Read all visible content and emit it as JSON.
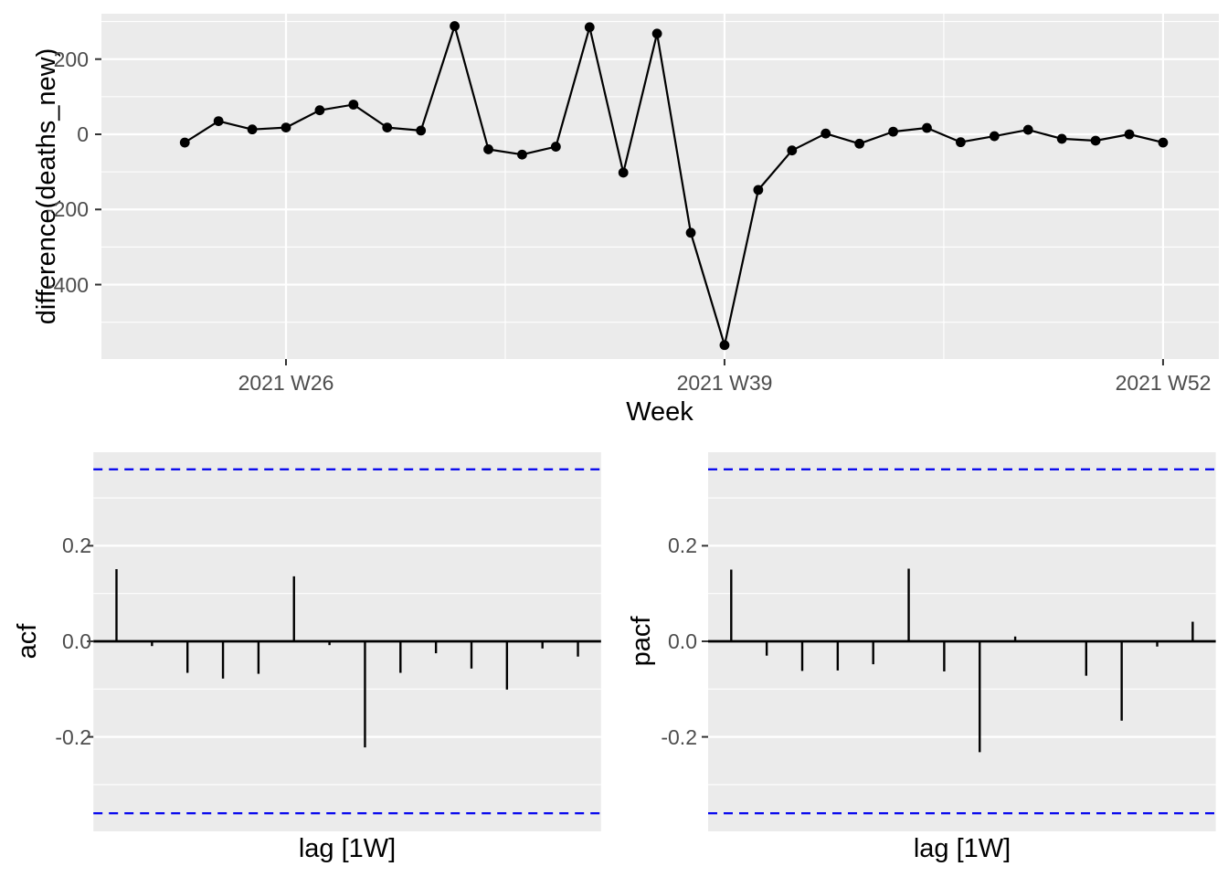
{
  "colors": {
    "background": "#FFFFFF",
    "panel_background": "#EBEBEB",
    "grid_major": "#FFFFFF",
    "grid_minor": "#FFFFFF",
    "axis_text": "#4D4D4D",
    "axis_title": "#000000",
    "series": "#000000",
    "zero_line": "#000000",
    "significance_line": "#0000EE",
    "tick_mark": "#333333"
  },
  "chart_data": [
    {
      "id": "difference_series",
      "type": "line",
      "title": "",
      "ylabel": "difference(deaths_new)",
      "xlabel": "Week",
      "marker": "filled-circle",
      "x_tick_labels": [
        "2021 W26",
        "2021 W39",
        "2021 W52"
      ],
      "x_tick_weeks": [
        26,
        39,
        52
      ],
      "x_minor_weeks": [
        32.5,
        45.5
      ],
      "y_tick_labels": [
        "200",
        "0",
        "-200",
        "-400"
      ],
      "y_ticks": [
        200,
        0,
        -200,
        -400
      ],
      "y_minor_gridlines": [
        300,
        100,
        -100,
        -300,
        -500
      ],
      "ylim": [
        -600,
        321
      ],
      "weeks": [
        "2021 W23",
        "2021 W24",
        "2021 W25",
        "2021 W26",
        "2021 W27",
        "2021 W28",
        "2021 W29",
        "2021 W30",
        "2021 W31",
        "2021 W32",
        "2021 W33",
        "2021 W34",
        "2021 W35",
        "2021 W36",
        "2021 W37",
        "2021 W38",
        "2021 W39",
        "2021 W40",
        "2021 W41",
        "2021 W42",
        "2021 W43",
        "2021 W44",
        "2021 W45",
        "2021 W46",
        "2021 W47",
        "2021 W48",
        "2021 W49",
        "2021 W50",
        "2021 W51",
        "2021 W52"
      ],
      "week_numbers": [
        23,
        24,
        25,
        26,
        27,
        28,
        29,
        30,
        31,
        32,
        33,
        34,
        35,
        36,
        37,
        38,
        39,
        40,
        41,
        42,
        43,
        44,
        45,
        46,
        47,
        48,
        49,
        50,
        51,
        52
      ],
      "values": [
        -22,
        35,
        13,
        18,
        64,
        79,
        18,
        10,
        288,
        -40,
        -54,
        -33,
        285,
        -102,
        268,
        -262,
        -561,
        -148,
        -43,
        2,
        -25,
        7,
        17,
        -21,
        -5,
        12,
        -12,
        -17,
        0,
        -22
      ]
    },
    {
      "id": "acf",
      "type": "bar",
      "ylabel": "acf",
      "xlabel": "lag [1W]",
      "y_tick_labels": [
        "0.2",
        "0.0",
        "-0.2"
      ],
      "y_ticks": [
        0.2,
        0.0,
        -0.2
      ],
      "y_minor_gridlines": [
        0.3,
        0.1,
        -0.1,
        -0.3
      ],
      "ylim": [
        -0.4,
        0.4
      ],
      "significance_bounds": [
        0.36,
        -0.36
      ],
      "x_tick_labels": [],
      "lags": [
        1,
        2,
        3,
        4,
        5,
        6,
        7,
        8,
        9,
        10,
        11,
        12,
        13,
        14
      ],
      "values": [
        0.151,
        -0.01,
        -0.066,
        -0.078,
        -0.068,
        0.136,
        -0.008,
        -0.222,
        -0.066,
        -0.025,
        -0.057,
        -0.101,
        -0.015,
        -0.032
      ]
    },
    {
      "id": "pacf",
      "type": "bar",
      "ylabel": "pacf",
      "xlabel": "lag [1W]",
      "y_tick_labels": [
        "0.2",
        "0.0",
        "-0.2"
      ],
      "y_ticks": [
        0.2,
        0.0,
        -0.2
      ],
      "y_minor_gridlines": [
        0.3,
        0.1,
        -0.1,
        -0.3
      ],
      "ylim": [
        -0.4,
        0.4
      ],
      "significance_bounds": [
        0.36,
        -0.36
      ],
      "x_tick_labels": [],
      "lags": [
        1,
        2,
        3,
        4,
        5,
        6,
        7,
        8,
        9,
        10,
        11,
        12,
        13,
        14
      ],
      "values": [
        0.15,
        -0.03,
        -0.062,
        -0.061,
        -0.048,
        0.152,
        -0.063,
        -0.232,
        0.01,
        0.0,
        -0.072,
        -0.166,
        -0.011,
        0.041
      ]
    }
  ]
}
